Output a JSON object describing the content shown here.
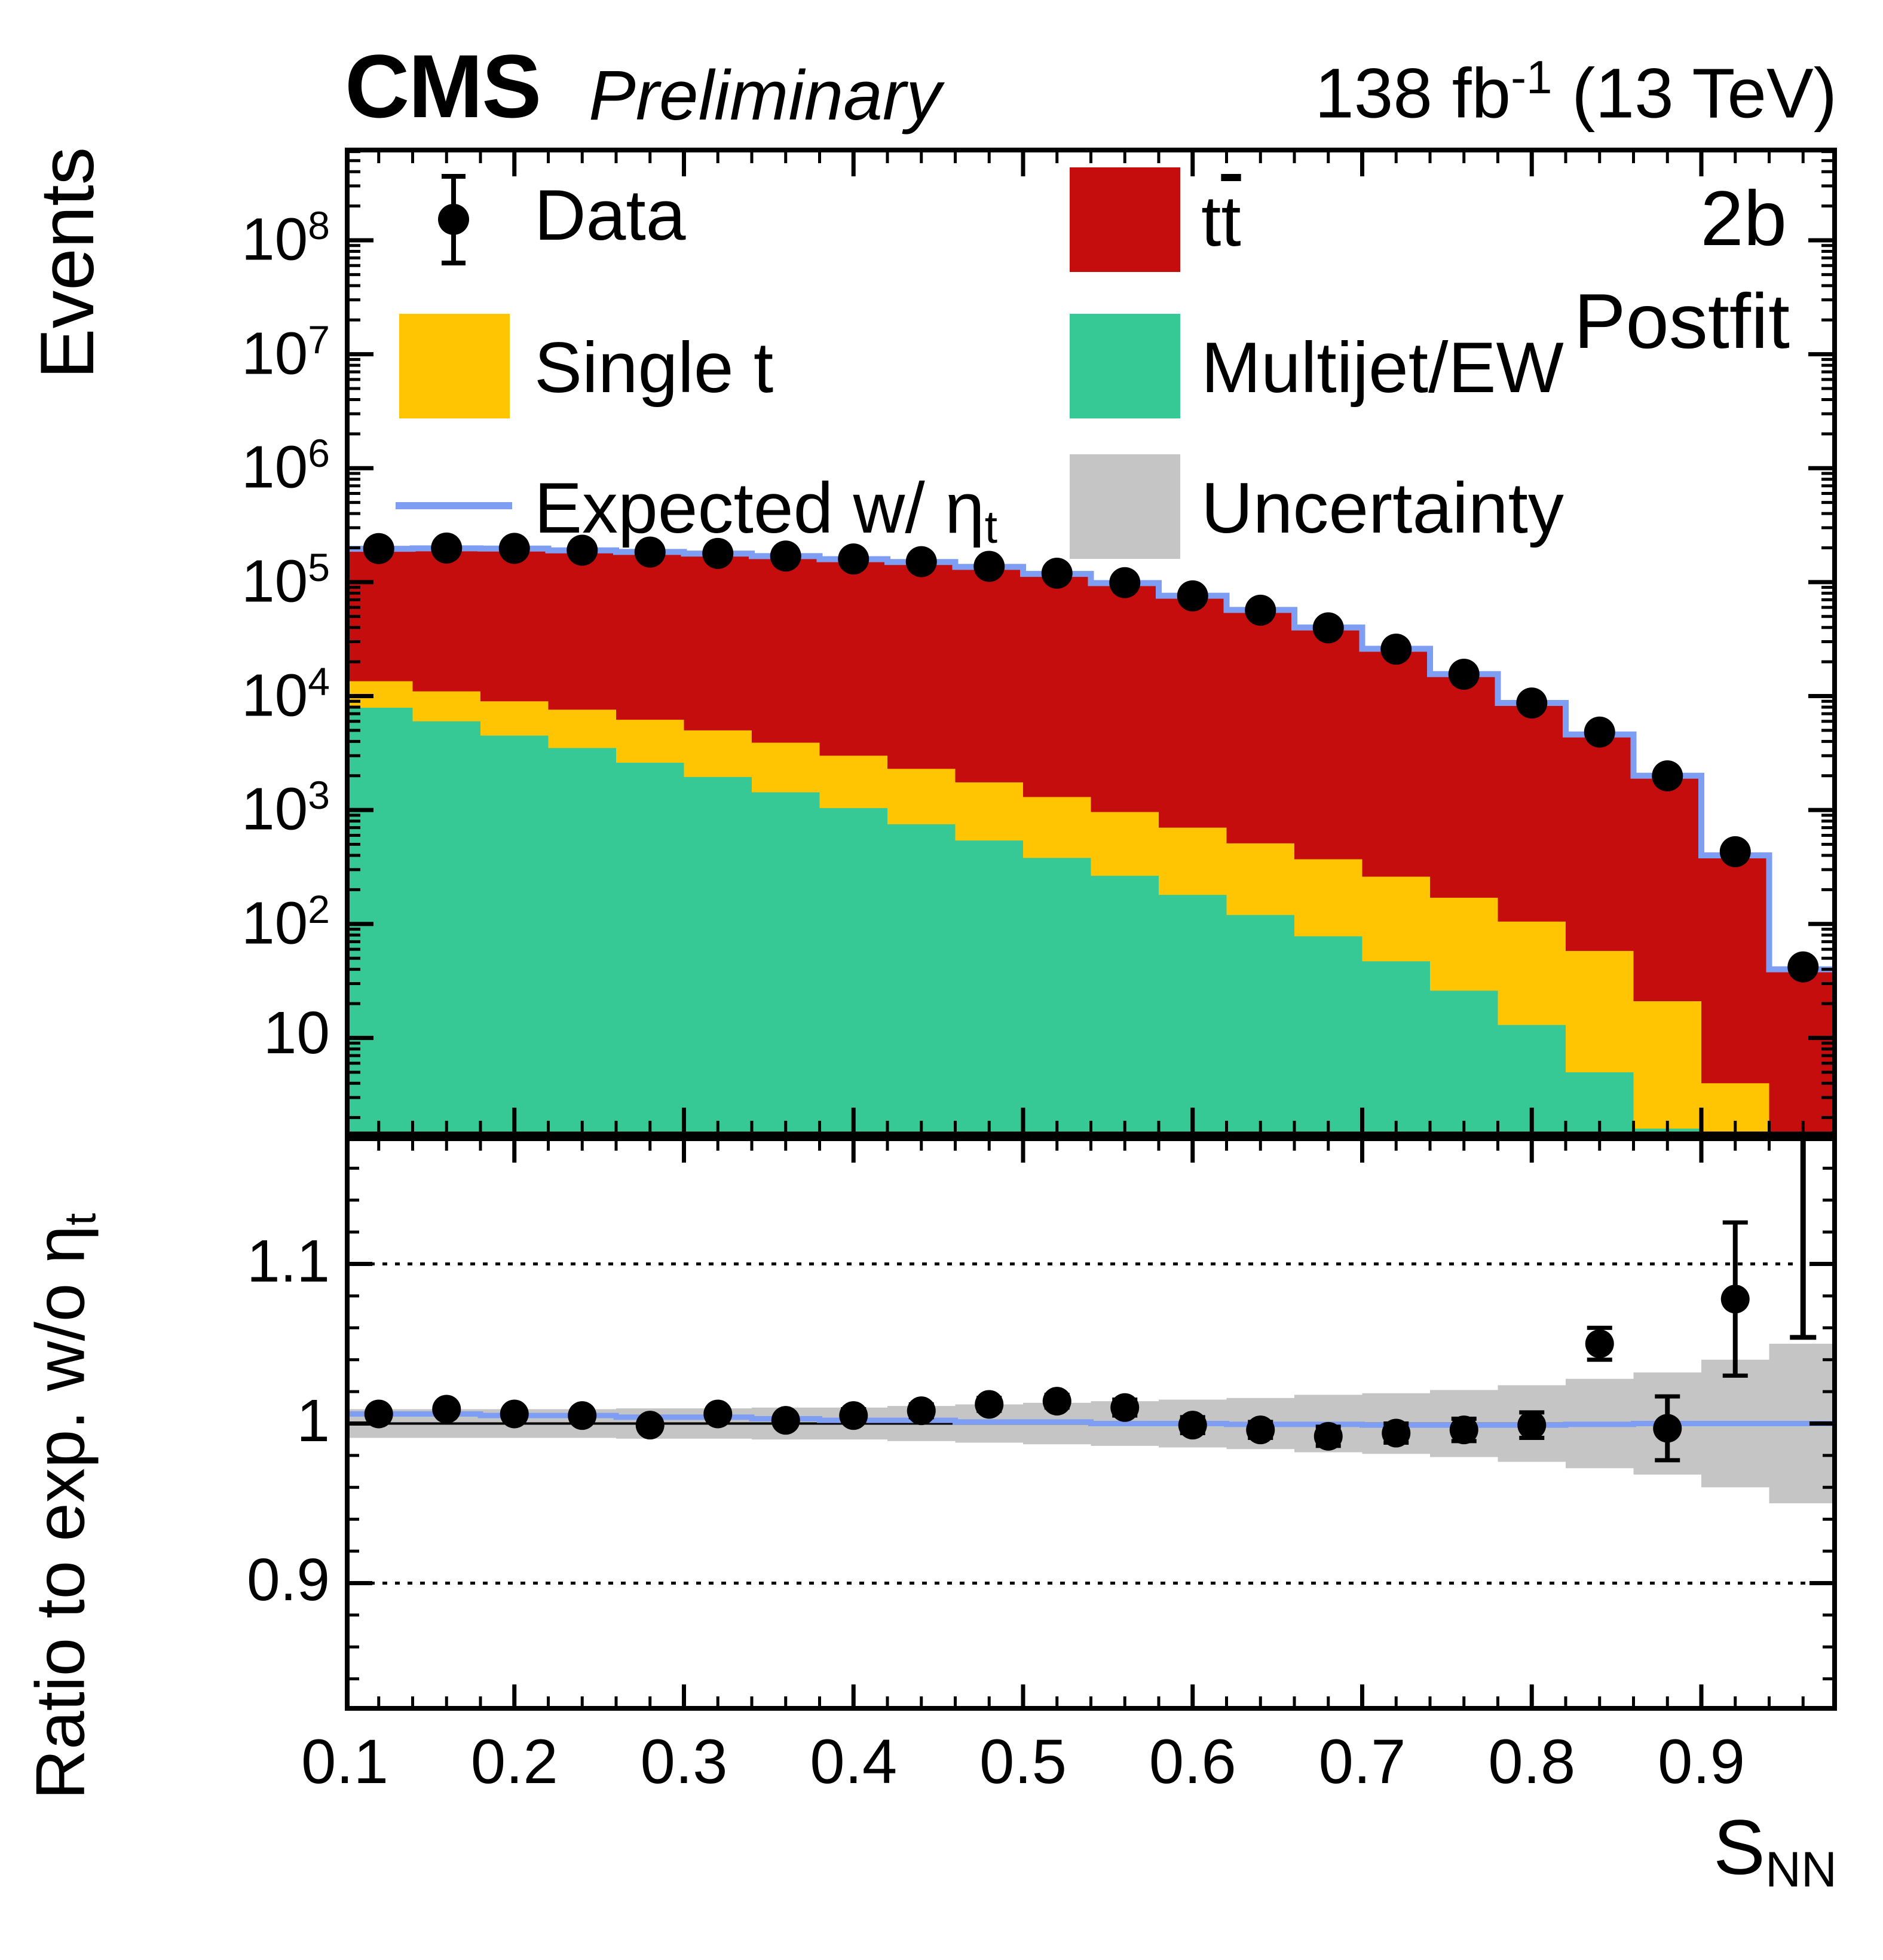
{
  "header": {
    "experiment": "CMS",
    "status": "Preliminary",
    "lumi_pre": "138 fb",
    "lumi_sup": "-1",
    "lumi_post": " (13 TeV)"
  },
  "annotations": {
    "category": "2b",
    "fit": "Postfit"
  },
  "legend": {
    "data_label": "Data",
    "ttbar_t1": "t",
    "ttbar_t2": "t",
    "singlet_label": "Single t",
    "multijet_label": "Multijet/EW",
    "expected_pre": "Expected w/ ",
    "expected_eta": "η",
    "expected_sub": "t",
    "uncertainty_label": "Uncertainty"
  },
  "axes": {
    "main_ylabel": "Events",
    "ratio_ylabel_pre": "Ratio to exp. w/o ",
    "ratio_ylabel_eta": "η",
    "ratio_ylabel_sub": "t",
    "xlabel_pre": "S",
    "xlabel_sub": "NN",
    "x_tick_labels": [
      "0.1",
      "0.2",
      "0.3",
      "0.4",
      "0.5",
      "0.6",
      "0.7",
      "0.8",
      "0.9"
    ],
    "main_y_tick_exponents": [
      8,
      7,
      6,
      5,
      4,
      3,
      2,
      1
    ],
    "ratio_y_tick_labels": [
      "1.1",
      "1",
      "0.9"
    ]
  },
  "colors": {
    "ttbar": "#c60d0d",
    "singlet": "#ffc502",
    "multijet": "#36c995",
    "expected_line": "#7d9ef2",
    "uncertainty": "#c5c5c5",
    "marker": "#000000"
  },
  "chart_data": {
    "type": "stacked-histogram-with-ratio",
    "title": "CMS Preliminary 138 fb-1 (13 TeV), 2b Postfit",
    "x": {
      "label": "S_NN",
      "min": 0.1,
      "max": 0.98,
      "bin_width": 0.04,
      "n_bins": 22,
      "major_ticks": [
        0.1,
        0.2,
        0.3,
        0.4,
        0.5,
        0.6,
        0.7,
        0.8,
        0.9
      ],
      "minor_tick_step": 0.02
    },
    "main_panel": {
      "y_scale": "log",
      "y_label": "Events",
      "y_range": [
        1.37,
        650000000
      ],
      "grid": false,
      "legend_position": "top-inside",
      "series": [
        {
          "name": "Multijet/EW",
          "role": "stack-cumulative-top",
          "color": "#36c995",
          "values": [
            7900,
            6000,
            4500,
            3500,
            2600,
            1950,
            1430,
            1040,
            750,
            540,
            380,
            265,
            180,
            120,
            78,
            47,
            26,
            13,
            5,
            1.6,
            0,
            0
          ]
        },
        {
          "name": "Single t",
          "role": "stack-cumulative-top",
          "color": "#ffc502",
          "values": [
            13500,
            11000,
            9000,
            7600,
            6200,
            5000,
            3900,
            3000,
            2300,
            1750,
            1300,
            960,
            700,
            510,
            370,
            260,
            170,
            105,
            58,
            21,
            4,
            0
          ]
        },
        {
          "name": "ttbar",
          "role": "stack-cumulative-top",
          "color": "#c60d0d",
          "values": [
            196000,
            198000,
            197000,
            190000,
            184000,
            178000,
            169000,
            159000,
            150000,
            136000,
            118000,
            98000,
            76000,
            57000,
            40000,
            26000,
            15600,
            8700,
            4600,
            2000,
            400,
            40
          ]
        },
        {
          "name": "Expected w/ eta_t",
          "role": "step-line",
          "color": "#7d9ef2",
          "values": [
            196000,
            198000,
            197000,
            190000,
            184000,
            178000,
            169000,
            159000,
            150000,
            136000,
            118000,
            98000,
            76000,
            57000,
            40000,
            26000,
            15600,
            8700,
            4600,
            2000,
            400,
            40
          ]
        },
        {
          "name": "Data",
          "role": "points",
          "color": "#000000",
          "values": [
            197000,
            199200,
            197800,
            190600,
            183600,
            178700,
            169300,
            159600,
            151200,
            137600,
            119700,
            99000,
            75800,
            56700,
            39700,
            25800,
            15540,
            8690,
            4830,
            1994,
            431,
            42
          ]
        }
      ]
    },
    "ratio_panel": {
      "y_label": "Ratio to exp. w/o eta_t",
      "y_range": [
        0.82,
        1.18
      ],
      "y_ticks": [
        0.9,
        1.0,
        1.1
      ],
      "dotted_lines": [
        0.9,
        1.1
      ],
      "unity_line": 1.0,
      "band_halfwidth": [
        0.009,
        0.009,
        0.009,
        0.009,
        0.0095,
        0.0095,
        0.01,
        0.01,
        0.011,
        0.012,
        0.013,
        0.014,
        0.015,
        0.016,
        0.018,
        0.019,
        0.021,
        0.024,
        0.028,
        0.032,
        0.04,
        0.05
      ],
      "expected_line_values": [
        1.006,
        1.006,
        1.005,
        1.005,
        1.004,
        1.004,
        1.003,
        1.002,
        1.002,
        1.001,
        1.001,
        1.0,
        1.0,
        0.9995,
        0.9995,
        0.999,
        0.999,
        0.999,
        0.9995,
        1.0,
        1.0,
        1.0
      ],
      "points": [
        1.006,
        1.009,
        1.006,
        1.005,
        0.999,
        1.006,
        1.002,
        1.005,
        1.008,
        1.012,
        1.014,
        1.01,
        0.999,
        0.996,
        0.992,
        0.994,
        0.996,
        0.999,
        1.05,
        0.997,
        1.078,
        null
      ],
      "point_err": [
        0.003,
        0.003,
        0.003,
        0.003,
        0.003,
        0.003,
        0.003,
        0.004,
        0.004,
        0.004,
        0.004,
        0.005,
        0.005,
        0.005,
        0.006,
        0.006,
        0.007,
        0.008,
        0.01,
        0.02,
        0.048,
        null
      ],
      "overflow_bar": {
        "bin_index": 21,
        "from": 1.054,
        "clipped_at_top": true
      }
    }
  }
}
